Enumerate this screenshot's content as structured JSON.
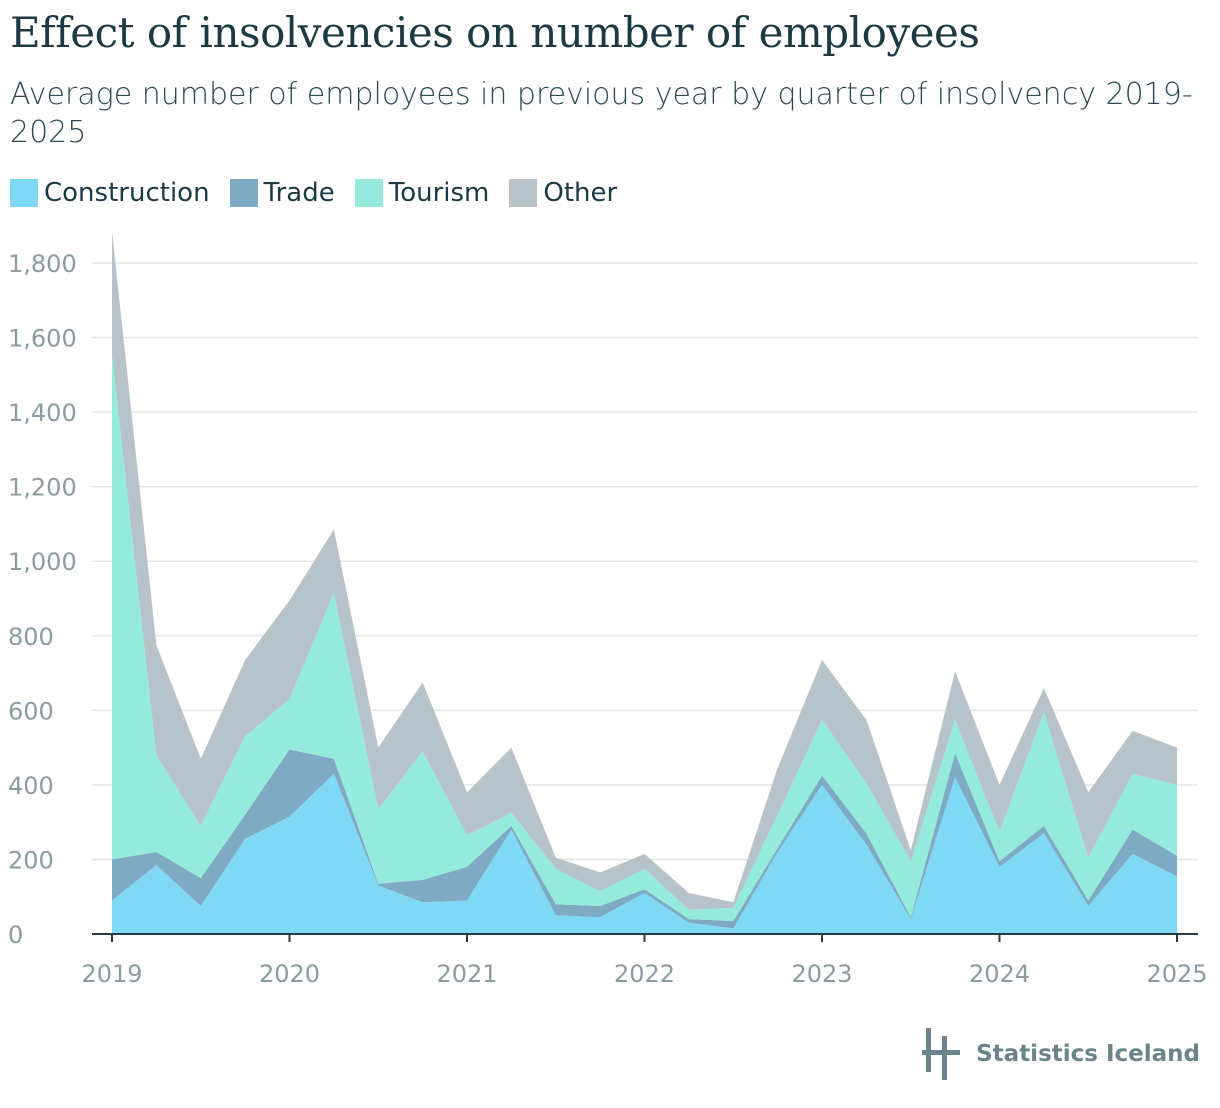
{
  "title": "Effect of insolvencies on number of employees",
  "subtitle": "Average number of employees in previous year by quarter of insolvency 2019-2025",
  "legend": [
    {
      "label": "Construction",
      "color": "#7fd9f4"
    },
    {
      "label": "Trade",
      "color": "#7faac4"
    },
    {
      "label": "Tourism",
      "color": "#94eadb"
    },
    {
      "label": "Other",
      "color": "#b6c4c9"
    }
  ],
  "brand": {
    "name": "Statistics Iceland",
    "logo_icon": "statistics-iceland-logo-icon"
  },
  "chart_data": {
    "type": "area",
    "stacked": true,
    "x": [
      2019.0,
      2019.25,
      2019.5,
      2019.75,
      2020.0,
      2020.25,
      2020.5,
      2020.75,
      2021.0,
      2021.25,
      2021.5,
      2021.75,
      2022.0,
      2022.25,
      2022.5,
      2022.75,
      2023.0,
      2023.25,
      2023.5,
      2023.75,
      2024.0,
      2024.25,
      2024.5,
      2024.75,
      2025.0
    ],
    "x_ticks": [
      2019,
      2020,
      2021,
      2022,
      2023,
      2024,
      2025
    ],
    "y_ticks": [
      "0",
      "200",
      "400",
      "600",
      "800",
      "1,000",
      "1,200",
      "1,400",
      "1,600",
      "1,800"
    ],
    "ylim": [
      0,
      1880
    ],
    "grid": true,
    "legend_position": "top-left",
    "series": [
      {
        "name": "Construction",
        "color": "#7fd9f4",
        "values": [
          90,
          185,
          75,
          255,
          315,
          430,
          130,
          85,
          90,
          280,
          50,
          45,
          110,
          30,
          15,
          220,
          400,
          240,
          40,
          420,
          180,
          270,
          75,
          215,
          155
        ]
      },
      {
        "name": "Trade",
        "color": "#7faac4",
        "values": [
          110,
          35,
          75,
          65,
          180,
          40,
          5,
          60,
          90,
          10,
          30,
          30,
          10,
          10,
          20,
          10,
          25,
          30,
          5,
          65,
          15,
          20,
          15,
          65,
          55
        ]
      },
      {
        "name": "Tourism",
        "color": "#94eadb",
        "values": [
          1355,
          260,
          140,
          210,
          135,
          445,
          200,
          345,
          85,
          35,
          95,
          40,
          55,
          25,
          35,
          90,
          150,
          135,
          150,
          90,
          80,
          305,
          115,
          150,
          190
        ]
      },
      {
        "name": "Other",
        "color": "#b6c4c9",
        "values": [
          330,
          295,
          180,
          205,
          265,
          170,
          165,
          185,
          115,
          175,
          30,
          50,
          40,
          45,
          15,
          125,
          160,
          170,
          30,
          130,
          125,
          65,
          175,
          115,
          100
        ]
      }
    ]
  }
}
